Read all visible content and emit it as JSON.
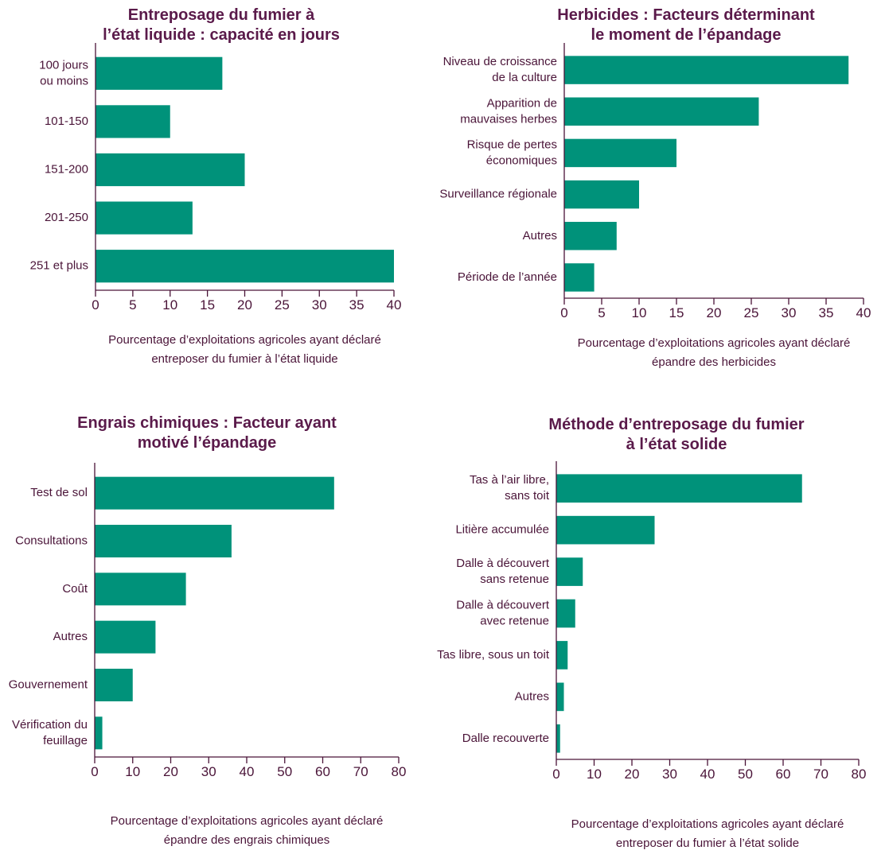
{
  "chart_data": [
    {
      "type": "bar",
      "title": "Entreposage du fumier à\nl’état liquide : capacité en jours",
      "categories": [
        "100 jours\nou moins",
        "101-150",
        "151-200",
        "201-250",
        "251 et plus"
      ],
      "values": [
        17,
        10,
        20,
        13,
        40
      ],
      "color": "#00927a",
      "xlabel": "Pourcentage d’exploitations agricoles ayant déclaré\nentreposer du fumier à l’état liquide",
      "xlim": [
        0,
        40
      ],
      "xticks": [
        0,
        5,
        10,
        15,
        20,
        25,
        30,
        35,
        40
      ]
    },
    {
      "type": "bar",
      "title": "Herbicides : Facteurs déterminant\nle moment de l’épandage",
      "categories": [
        "Niveau de croissance\nde la culture",
        "Apparition de\nmauvaises herbes",
        "Risque de pertes\néconomiques",
        "Surveillance régionale",
        "Autres",
        "Période de l’année"
      ],
      "values": [
        38,
        26,
        15,
        10,
        7,
        4
      ],
      "color": "#00927a",
      "xlabel": "Pourcentage d’exploitations agricoles ayant déclaré\népandre des herbicides",
      "xlim": [
        0,
        40
      ],
      "xticks": [
        0,
        5,
        10,
        15,
        20,
        25,
        30,
        35,
        40
      ]
    },
    {
      "type": "bar",
      "title": "Engrais chimiques : Facteur ayant\nmotivé l’épandage",
      "categories": [
        "Test de sol",
        "Consultations",
        "Coût",
        "Autres",
        "Gouvernement",
        "Vérification du\nfeuillage"
      ],
      "values": [
        63,
        36,
        24,
        16,
        10,
        2
      ],
      "color": "#00927a",
      "xlabel": "Pourcentage d’exploitations agricoles ayant déclaré\népandre des engrais chimiques",
      "xlim": [
        0,
        80
      ],
      "xticks": [
        0,
        10,
        20,
        30,
        40,
        50,
        60,
        70,
        80
      ]
    },
    {
      "type": "bar",
      "title": "Méthode d’entreposage du fumier\nà l’état solide",
      "categories": [
        "Tas à l’air libre,\nsans toit",
        "Litière accumulée",
        "Dalle à découvert\nsans retenue",
        "Dalle à découvert\navec retenue",
        "Tas libre, sous un toit",
        "Autres",
        "Dalle recouverte"
      ],
      "values": [
        65,
        26,
        7,
        5,
        3,
        2,
        1
      ],
      "color": "#00927a",
      "xlabel": "Pourcentage d’exploitations agricoles ayant déclaré\nentreposer du fumier à l’état solide",
      "xlim": [
        0,
        80
      ],
      "xticks": [
        0,
        10,
        20,
        30,
        40,
        50,
        60,
        70,
        80
      ]
    }
  ]
}
